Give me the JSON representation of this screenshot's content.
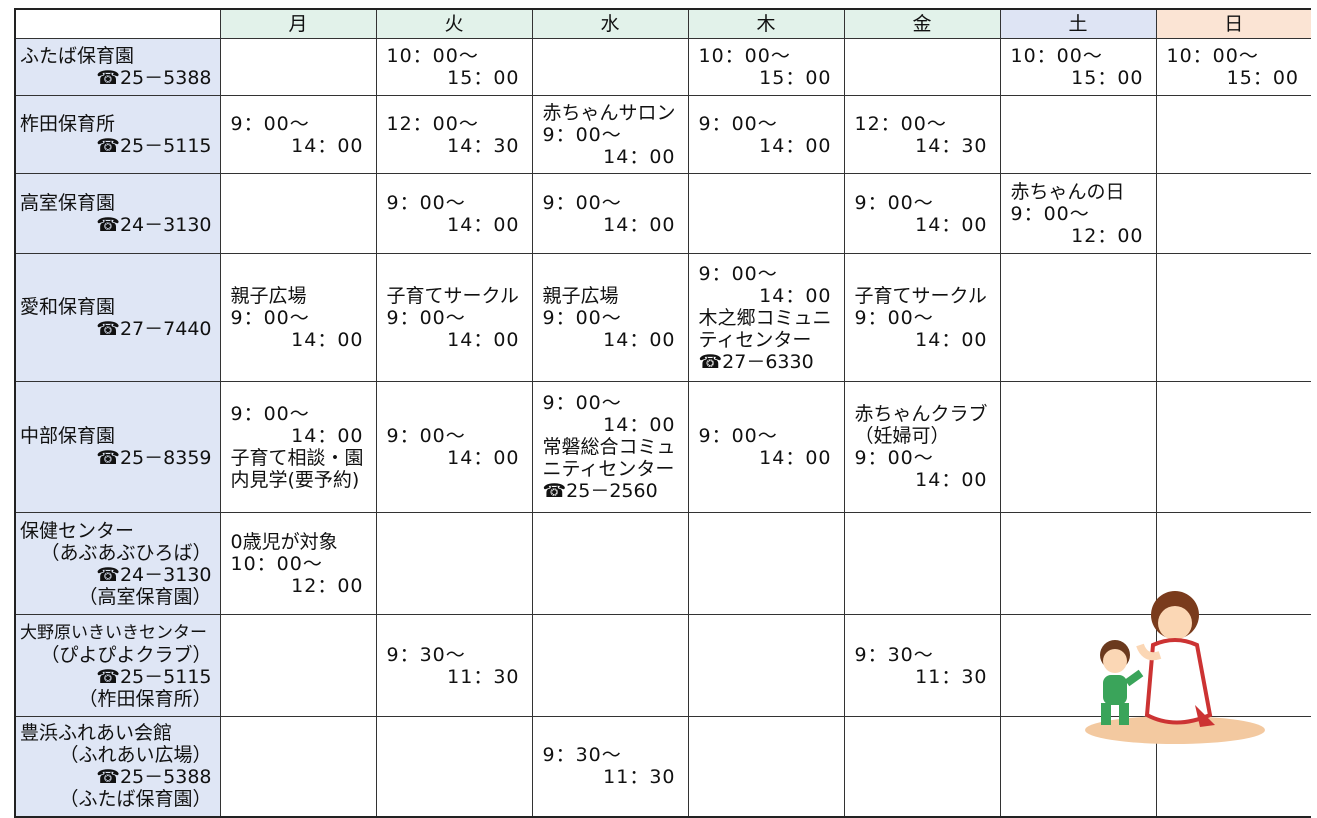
{
  "header": {
    "days": [
      "月",
      "火",
      "水",
      "木",
      "金",
      "土",
      "日"
    ]
  },
  "table": {
    "rows": [
      {
        "name": [
          "ふたば保育園",
          "☎25－5388"
        ],
        "cells": [
          [],
          [
            {
              "from": "10：00～",
              "to": "15：00"
            }
          ],
          [],
          [
            {
              "from": "10：00～",
              "to": "15：00"
            }
          ],
          [],
          [
            {
              "from": "10：00～",
              "to": "15：00"
            }
          ],
          [
            {
              "from": "10：00～",
              "to": "15：00"
            }
          ]
        ]
      },
      {
        "name": [
          "柞田保育所",
          "☎25－5115"
        ],
        "cells": [
          [
            {
              "from": "9：00～",
              "to": "14：00"
            }
          ],
          [
            {
              "from": "12：00～",
              "to": "14：30"
            }
          ],
          [
            "赤ちゃんサロン",
            {
              "from": "9：00～",
              "to": "14：00"
            }
          ],
          [
            {
              "from": "9：00～",
              "to": "14：00"
            }
          ],
          [
            {
              "from": "12：00～",
              "to": "14：30"
            }
          ],
          [],
          []
        ]
      },
      {
        "name": [
          "高室保育園",
          "☎24－3130"
        ],
        "cells": [
          [],
          [
            {
              "from": "9：00～",
              "to": "14：00"
            }
          ],
          [
            {
              "from": "9：00～",
              "to": "14：00"
            }
          ],
          [],
          [
            {
              "from": "9：00～",
              "to": "14：00"
            }
          ],
          [
            "赤ちゃんの日",
            {
              "from": "9：00～",
              "to": "12：00"
            }
          ],
          []
        ]
      },
      {
        "name": [
          "愛和保育園",
          "☎27－7440"
        ],
        "cells": [
          [
            "親子広場",
            {
              "from": "9：00～",
              "to": "14：00"
            }
          ],
          [
            "子育てサークル",
            {
              "from": "9：00～",
              "to": "14：00"
            }
          ],
          [
            "親子広場",
            {
              "from": "9：00～",
              "to": "14：00"
            }
          ],
          [
            {
              "from": "9：00～",
              "to": "14：00"
            },
            "木之郷コミュニ",
            "ティセンター",
            "☎27－6330"
          ],
          [
            "子育てサークル",
            {
              "from": "9：00～",
              "to": "14：00"
            }
          ],
          [],
          []
        ]
      },
      {
        "name": [
          "中部保育園",
          "☎25－8359"
        ],
        "cells": [
          [
            {
              "from": "9：00～",
              "to": "14：00"
            },
            "子育て相談・園",
            "内見学(要予約)"
          ],
          [
            {
              "from": "9：00～",
              "to": "14：00"
            }
          ],
          [
            {
              "from": "9：00～",
              "to": "14：00"
            },
            "常磐総合コミュ",
            "ニティセンター",
            "☎25－2560"
          ],
          [
            {
              "from": "9：00～",
              "to": "14：00"
            }
          ],
          [
            "赤ちゃんクラブ",
            "（妊婦可）",
            {
              "from": "9：00～",
              "to": "14：00"
            }
          ],
          [],
          []
        ]
      },
      {
        "name": [
          "保健センター",
          "（あぶあぶひろば）",
          "☎24－3130",
          "（高室保育園）"
        ],
        "cells": [
          [
            "0歳児が対象",
            {
              "from": "10：00～",
              "to": "12：00"
            }
          ],
          [],
          [],
          [],
          [],
          [],
          []
        ]
      },
      {
        "name": [
          "大野原いきいきセンター",
          "（ぴよぴよクラブ）",
          "☎25－5115",
          "（柞田保育所）"
        ],
        "cells": [
          [],
          [
            {
              "from": "9：30～",
              "to": "11：30"
            }
          ],
          [],
          [],
          [
            {
              "from": "9：30～",
              "to": "11：30"
            }
          ],
          [],
          []
        ]
      },
      {
        "name": [
          "豊浜ふれあい会館",
          "（ふれあい広場）",
          "☎25－5388",
          "（ふたば保育園）"
        ],
        "cells": [
          [],
          [],
          [
            {
              "from": "9：30～",
              "to": "11：30"
            }
          ],
          [],
          [],
          [],
          []
        ]
      }
    ]
  }
}
